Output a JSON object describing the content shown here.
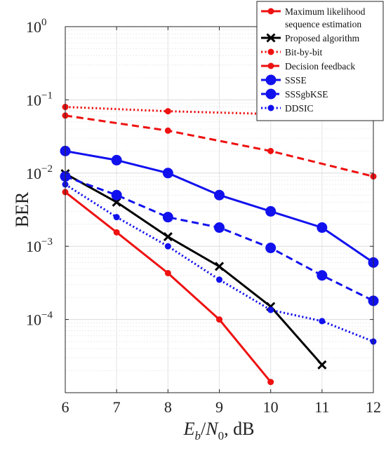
{
  "chart_data": {
    "type": "line",
    "x_axis": {
      "label_parts": [
        {
          "text": "E",
          "style": "italic"
        },
        {
          "text": "b",
          "style": "italic-sub"
        },
        {
          "text": "/",
          "style": "normal"
        },
        {
          "text": "N",
          "style": "italic"
        },
        {
          "text": "0",
          "style": "sub"
        },
        {
          "text": ", dB",
          "style": "normal"
        }
      ],
      "range": [
        6,
        12
      ],
      "ticks": [
        6,
        7,
        8,
        9,
        10,
        11,
        12
      ]
    },
    "y_axis": {
      "label": "BER",
      "scale": "log",
      "range": [
        1e-05,
        1
      ],
      "ticks": [
        {
          "value": 1,
          "base": "10",
          "exp": "0"
        },
        {
          "value": 0.1,
          "base": "10",
          "exp": "−1"
        },
        {
          "value": 0.01,
          "base": "10",
          "exp": "−2"
        },
        {
          "value": 0.001,
          "base": "10",
          "exp": "−3"
        },
        {
          "value": 0.0001,
          "base": "10",
          "exp": "−4"
        }
      ]
    },
    "grid": true,
    "legend_position": "top-right",
    "series": [
      {
        "name": [
          "Maximum likelihood",
          "sequence estimation"
        ],
        "color": "#ee1111",
        "line": "solid",
        "marker": "dot",
        "marker_size": "small",
        "x": [
          6,
          7,
          8,
          9,
          10
        ],
        "y": [
          0.0055,
          0.00155,
          0.00043,
          0.0001,
          1.4e-05
        ]
      },
      {
        "name": [
          "Proposed algorithm"
        ],
        "color": "#000000",
        "line": "solid",
        "marker": "x",
        "marker_size": "medium",
        "x": [
          6,
          7,
          8,
          9,
          10,
          11
        ],
        "y": [
          0.0098,
          0.004,
          0.00135,
          0.00053,
          0.00015,
          2.4e-05
        ]
      },
      {
        "name": [
          "Bit-by-bit"
        ],
        "color": "#ee1111",
        "line": "dotted",
        "marker": "dot",
        "marker_size": "small",
        "x": [
          6,
          8,
          10,
          12
        ],
        "y": [
          0.08,
          0.07,
          0.064,
          0.06
        ]
      },
      {
        "name": [
          "Decision feedback"
        ],
        "color": "#ee1111",
        "line": "dashed",
        "marker": "dot",
        "marker_size": "small",
        "x": [
          6,
          8,
          10,
          12
        ],
        "y": [
          0.061,
          0.038,
          0.02,
          0.009
        ]
      },
      {
        "name": [
          "SSSE"
        ],
        "color": "#1111ee",
        "line": "solid",
        "marker": "dot",
        "marker_size": "large",
        "x": [
          6,
          7,
          8,
          9,
          10,
          11,
          12
        ],
        "y": [
          0.02,
          0.015,
          0.01,
          0.005,
          0.003,
          0.0018,
          0.0006
        ]
      },
      {
        "name": [
          "SSSgbKSE"
        ],
        "color": "#1111ee",
        "line": "dashed",
        "marker": "dot",
        "marker_size": "large",
        "x": [
          6,
          7,
          8,
          9,
          10,
          11,
          12
        ],
        "y": [
          0.009,
          0.005,
          0.0025,
          0.0018,
          0.00095,
          0.0004,
          0.00018
        ]
      },
      {
        "name": [
          "DDSIC"
        ],
        "color": "#1111ee",
        "line": "dotted",
        "marker": "dot",
        "marker_size": "small",
        "x": [
          6,
          7,
          8,
          9,
          10,
          11,
          12
        ],
        "y": [
          0.007,
          0.0025,
          0.001,
          0.00035,
          0.000135,
          9.5e-05,
          5e-05
        ]
      }
    ]
  }
}
